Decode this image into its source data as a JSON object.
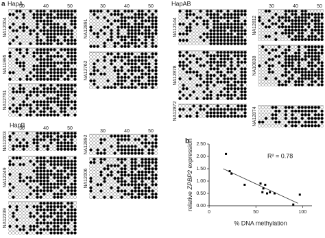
{
  "panel_a": {
    "label": "a",
    "groups": [
      "HapA",
      "HapAB",
      "HapB"
    ],
    "positions": [
      "30",
      "40",
      "50"
    ],
    "samples": [
      "NA12004",
      "NA11995",
      "NA12761",
      "NA12891",
      "NA12762",
      "NA12144",
      "NA12878",
      "NA12872",
      "NA12812",
      "NA10838",
      "NA12874",
      "NA12003",
      "NA12249",
      "NA12239",
      "NA12892",
      "NA12006"
    ]
  },
  "chart_data": {
    "type": "scatter",
    "panel_label": "b",
    "y_label": [
      "relative ",
      "ZPBP2",
      " expression"
    ],
    "x_label": "% DNA methylation",
    "annotation": "R² = 0.78",
    "x": [
      18,
      22,
      24,
      38,
      55,
      58,
      60,
      57,
      62,
      65,
      70,
      90,
      97
    ],
    "values": [
      2.1,
      1.4,
      1.3,
      0.85,
      0.9,
      0.7,
      0.85,
      0.55,
      0.5,
      0.55,
      0.5,
      0.05,
      0.45
    ],
    "color": "#000000",
    "fit_line": {
      "x": [
        15,
        95
      ],
      "y": [
        1.5,
        0.1
      ]
    },
    "xlim": [
      0,
      110
    ],
    "xticks": [
      0,
      50,
      100
    ],
    "ylim": [
      0,
      2.5
    ],
    "yticks": [
      {
        "value": 0,
        "label": "0.00"
      },
      {
        "value": 0.5,
        "label": "0.50"
      },
      {
        "value": 1,
        "label": "1.00"
      },
      {
        "value": 1.5,
        "label": "1.50"
      },
      {
        "value": 2,
        "label": "2.00"
      },
      {
        "value": 2.5,
        "label": "2.50"
      }
    ]
  }
}
